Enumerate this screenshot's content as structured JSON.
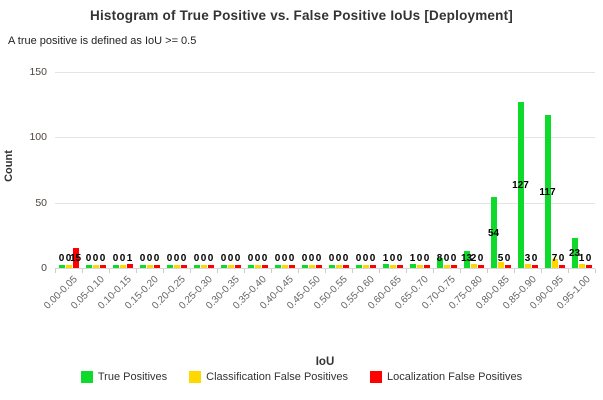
{
  "title": "Histogram of True Positive vs. False Positive IoUs [Deployment]",
  "subtitle": "A true positive is defined as IoU >= 0.5",
  "colors": {
    "true_positives": "#0dda2b",
    "classification_false_positives": "#ffd800",
    "localization_false_positives": "#fe0000",
    "grid": "#e4e4e4"
  },
  "chart_data": {
    "type": "bar",
    "title": "Histogram of True Positive vs. False Positive IoUs [Deployment]",
    "subtitle": "A true positive is defined as IoU >= 0.5",
    "xlabel": "IoU",
    "ylabel": "Count",
    "ylim": [
      0,
      150
    ],
    "yticks": [
      0,
      50,
      100,
      150
    ],
    "grid": true,
    "legend_position": "bottom",
    "value_labels": true,
    "categories": [
      "0.00-0.05",
      "0.05-0.10",
      "0.10-0.15",
      "0.15-0.20",
      "0.20-0.25",
      "0.25-0.30",
      "0.30-0.35",
      "0.35-0.40",
      "0.40-0.45",
      "0.45-0.50",
      "0.50-0.55",
      "0.55-0.60",
      "0.60-0.65",
      "0.65-0.70",
      "0.70-0.75",
      "0.75-0.80",
      "0.80-0.85",
      "0.85-0.90",
      "0.90-0.95",
      "0.95-1.00"
    ],
    "series": [
      {
        "name": "True Positives",
        "color": "#0dda2b",
        "values": [
          0,
          0,
          0,
          0,
          0,
          0,
          0,
          0,
          0,
          0,
          0,
          0,
          1,
          1,
          8,
          13,
          54,
          127,
          117,
          23
        ]
      },
      {
        "name": "Classification False Positives",
        "color": "#ffd800",
        "values": [
          0,
          0,
          0,
          0,
          0,
          0,
          0,
          0,
          0,
          0,
          0,
          0,
          0,
          0,
          0,
          2,
          5,
          3,
          7,
          1
        ]
      },
      {
        "name": "Localization False Positives",
        "color": "#fe0000",
        "values": [
          15,
          0,
          1,
          0,
          0,
          0,
          0,
          0,
          0,
          0,
          0,
          0,
          0,
          0,
          0,
          0,
          0,
          0,
          0,
          0
        ]
      }
    ]
  }
}
